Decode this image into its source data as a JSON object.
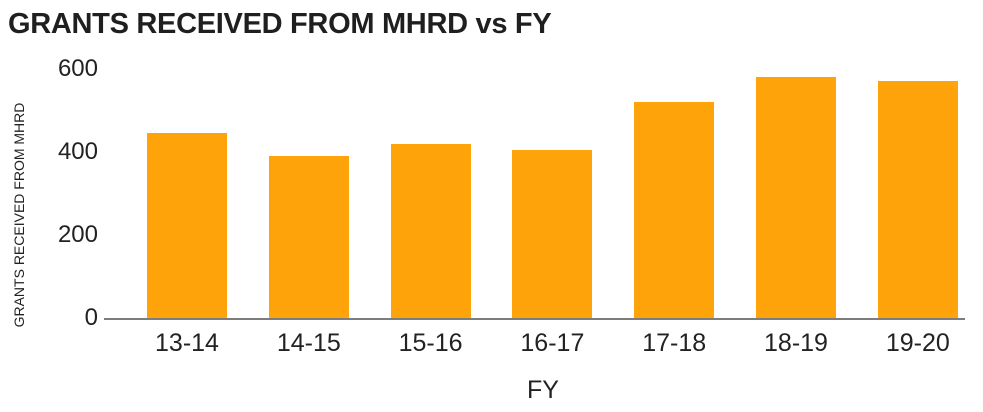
{
  "chart_data": {
    "type": "bar",
    "title": "GRANTS RECEIVED FROM MHRD vs FY",
    "xlabel": "FY",
    "ylabel": "GRANTS RECEIVED FROM MHRD",
    "categories": [
      "13-14",
      "14-15",
      "15-16",
      "16-17",
      "17-18",
      "18-19",
      "19-20"
    ],
    "values": [
      445,
      390,
      420,
      405,
      520,
      580,
      570
    ],
    "yticks": [
      0,
      200,
      400,
      600
    ],
    "ylim": [
      0,
      600
    ],
    "grid": false,
    "legend": "none",
    "bar_color": "#FFA30B",
    "axis_line_color": "#7D7D7D",
    "text_color": "#222222",
    "background_color": "#FFFFFF"
  }
}
